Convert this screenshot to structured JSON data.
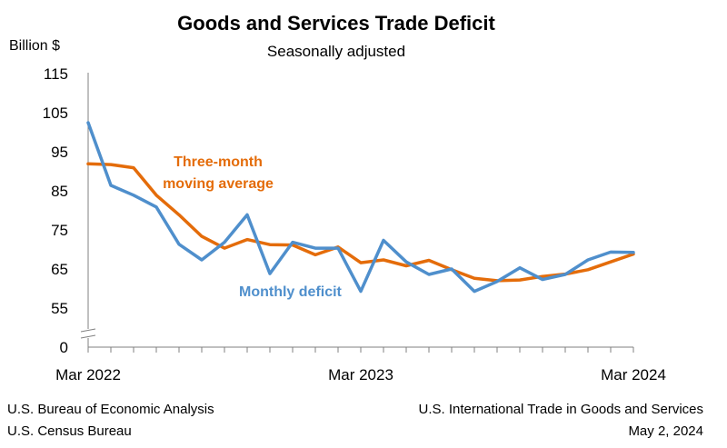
{
  "chart_data": {
    "type": "line",
    "title": "Goods and Services Trade Deficit",
    "subtitle": "Seasonally adjusted",
    "ylabel": "Billion $",
    "yticks": [
      "115",
      "105",
      "95",
      "85",
      "75",
      "65",
      "55",
      "0"
    ],
    "ylim_upper": [
      55,
      115
    ],
    "axis_break": true,
    "x_tick_labels": [
      "Mar 2022",
      "Mar 2023",
      "Mar 2024"
    ],
    "x": [
      "Mar 2022",
      "Apr 2022",
      "May 2022",
      "Jun 2022",
      "Jul 2022",
      "Aug 2022",
      "Sep 2022",
      "Oct 2022",
      "Nov 2022",
      "Dec 2022",
      "Jan 2023",
      "Feb 2023",
      "Mar 2023",
      "Apr 2023",
      "May 2023",
      "Jun 2023",
      "Jul 2023",
      "Aug 2023",
      "Sep 2023",
      "Oct 2023",
      "Nov 2023",
      "Dec 2023",
      "Jan 2024",
      "Feb 2024",
      "Mar 2024"
    ],
    "series": [
      {
        "name": "Monthly deficit",
        "color": "#4f8fcc",
        "values": [
          102.5,
          86.5,
          84.0,
          81.0,
          71.5,
          67.5,
          72.0,
          79.0,
          64.0,
          72.0,
          70.5,
          70.5,
          59.5,
          72.5,
          67.0,
          63.8,
          65.2,
          59.5,
          62.0,
          65.5,
          62.5,
          63.8,
          67.5,
          69.5,
          69.4
        ]
      },
      {
        "name": "Three-month moving average",
        "color": "#e46c0a",
        "values": [
          92.0,
          91.8,
          91.0,
          84.0,
          79.0,
          73.5,
          70.5,
          72.7,
          71.4,
          71.3,
          68.8,
          70.8,
          66.8,
          67.5,
          66.0,
          67.4,
          65.0,
          62.8,
          62.2,
          62.4,
          63.3,
          63.9,
          65.0,
          67.0,
          69.0
        ]
      }
    ],
    "series_labels": {
      "average_line1": "Three-month",
      "average_line2": "moving average",
      "monthly": "Monthly deficit"
    }
  },
  "footer": {
    "left_line1": "U.S. Bureau of Economic Analysis",
    "left_line2": "U.S. Census Bureau",
    "right_line1": "U.S. International Trade in Goods and Services",
    "right_line2": "May 2, 2024"
  }
}
